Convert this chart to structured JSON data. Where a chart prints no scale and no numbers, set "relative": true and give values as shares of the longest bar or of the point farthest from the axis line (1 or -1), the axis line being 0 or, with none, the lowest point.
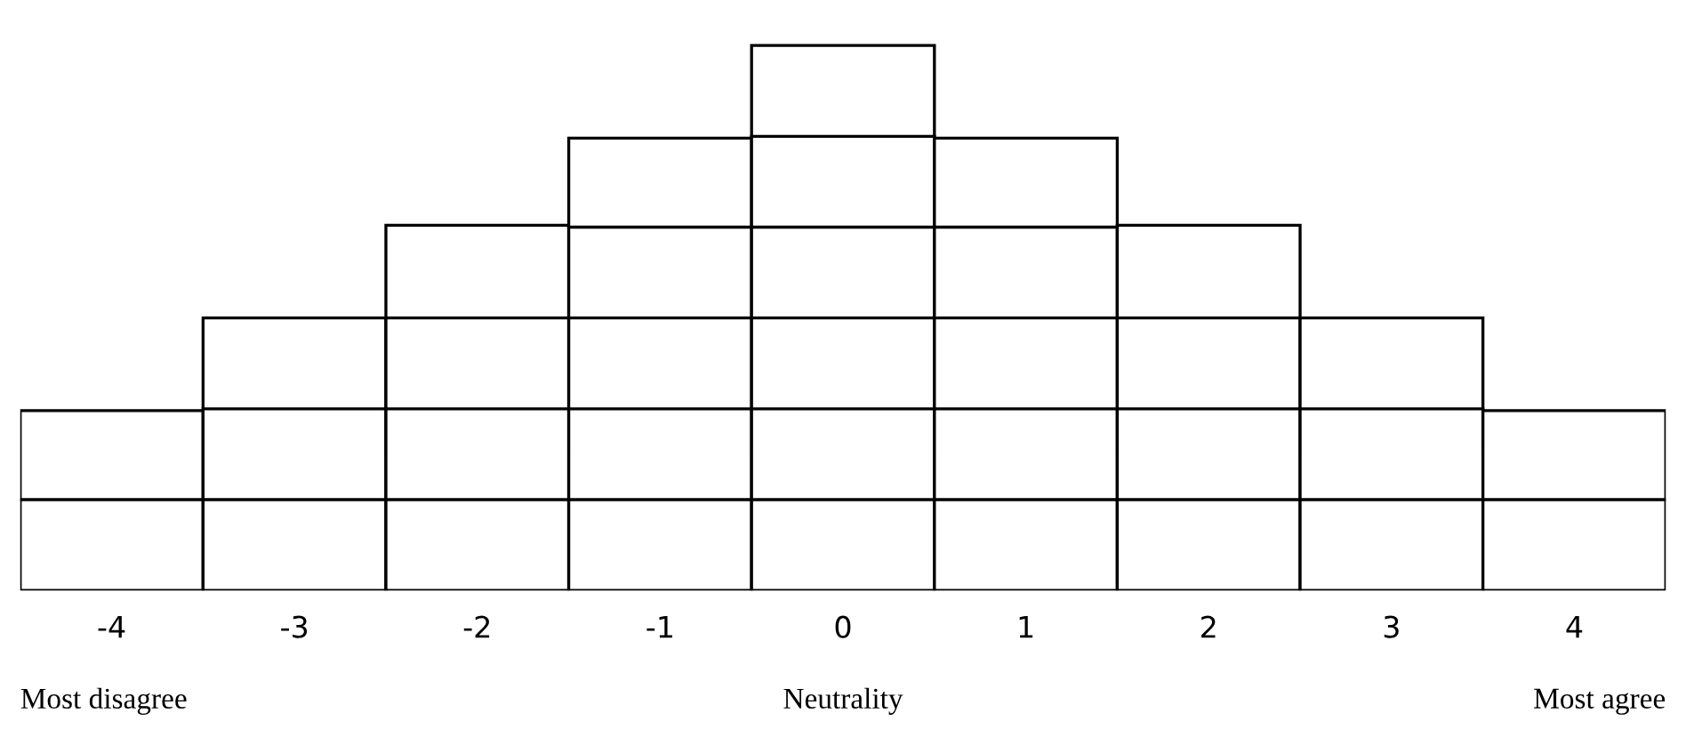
{
  "chart_data": {
    "type": "bar",
    "relative": true,
    "grid": false,
    "legend": false,
    "color": "#ffffff",
    "categories": [
      "-4",
      "-3",
      "-2",
      "-1",
      "0",
      "1",
      "2",
      "3",
      "4"
    ],
    "values": [
      0.33,
      0.5,
      0.67,
      0.83,
      1,
      0.83,
      0.67,
      0.5,
      0.33
    ],
    "annotations": [
      "Most disagree",
      "Neutrality",
      "Most agree"
    ]
  }
}
